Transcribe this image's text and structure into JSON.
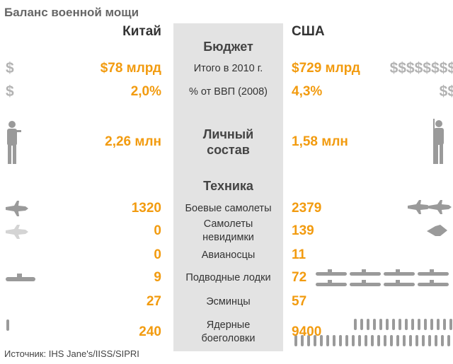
{
  "title": "Баланс военной мощи",
  "columns": {
    "left": "Китай",
    "right": "США"
  },
  "sections": [
    {
      "heading": [
        "Бюджет"
      ],
      "rows": [
        {
          "label": [
            "Итого в 2010 г."
          ],
          "left": "$78 млрд",
          "right": "$729 млрд",
          "left_icon": "$",
          "right_icon": "$$$$$$$$"
        },
        {
          "label": [
            "% от ВВП (2008)"
          ],
          "left": "2,0%",
          "right": "4,3%",
          "left_icon": "$",
          "right_icon": "$$"
        }
      ]
    },
    {
      "heading": [
        "Личный",
        "состав"
      ],
      "rows": [
        {
          "left": "2,26 млн",
          "right": "1,58 млн"
        }
      ]
    },
    {
      "heading": [
        "Техника"
      ],
      "rows": [
        {
          "label": [
            "Боевые самолеты"
          ],
          "left": "1320",
          "right": "2379"
        },
        {
          "label": [
            "Самолеты",
            "невидимки"
          ],
          "left": "0",
          "right": "139"
        },
        {
          "label": [
            "Авианосцы"
          ],
          "left": "0",
          "right": "11"
        },
        {
          "label": [
            "Подводные лодки"
          ],
          "left": "9",
          "right": "72"
        },
        {
          "label": [
            "Эсминцы"
          ],
          "left": "27",
          "right": "57"
        },
        {
          "label": [
            "Ядерные",
            "боеголовки"
          ],
          "left": "240",
          "right": "9400"
        }
      ]
    }
  ],
  "source": "Источник: IHS Jane's/IISS/SIPRI"
}
